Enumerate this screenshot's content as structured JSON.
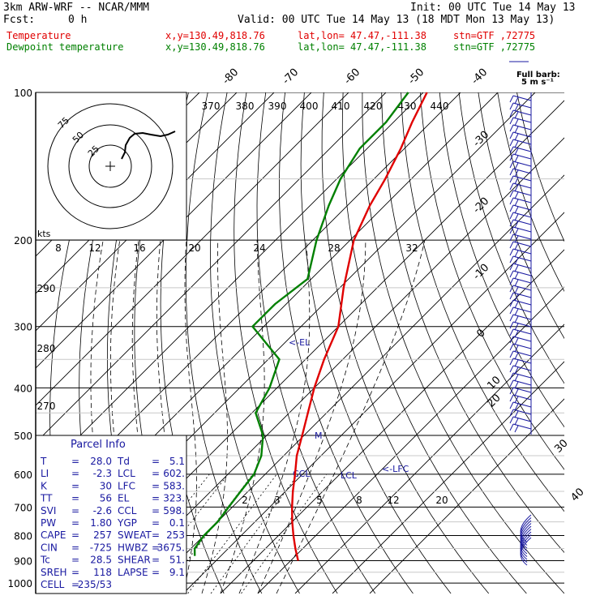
{
  "header": {
    "model": "3km ARW-WRF -- NCAR/MMM",
    "init": "Init: 00 UTC Tue 14 May 13",
    "fcst_label": "Fcst:",
    "fcst_value": "0 h",
    "valid": "Valid: 00 UTC Tue 14 May 13 (18 MDT Mon 13 May 13)",
    "temp_label": "Temperature",
    "dew_label": "Dewpoint temperature",
    "xy": "x,y=130.49,818.76",
    "latlon": "lat,lon= 47.47,-111.38",
    "stn": "stn=GTF ,72775"
  },
  "barb_legend": {
    "title": "Full barb:",
    "value": "5 m s⁻¹"
  },
  "hodograph": {
    "units": "kts",
    "ring_labels": [
      "75",
      "50",
      "25"
    ]
  },
  "parcel_info": {
    "title": "Parcel Info",
    "rows": [
      {
        "k1": "T",
        "v1": "28.0",
        "k2": "Td",
        "v2": "5.1"
      },
      {
        "k1": "LI",
        "v1": "-2.3",
        "k2": "LCL",
        "v2": "602."
      },
      {
        "k1": "K",
        "v1": "30",
        "k2": "LFC",
        "v2": "583."
      },
      {
        "k1": "TT",
        "v1": "56",
        "k2": "EL",
        "v2": "323."
      },
      {
        "k1": "SVI",
        "v1": "-2.6",
        "k2": "CCL",
        "v2": "598."
      },
      {
        "k1": "PW",
        "v1": "1.80",
        "k2": "YGP",
        "v2": "0.1"
      },
      {
        "k1": "CAPE",
        "v1": "257",
        "k2": "SWEAT",
        "v2": "253"
      },
      {
        "k1": "CIN",
        "v1": "-725",
        "k2": "HWBZ",
        "v2": "3675."
      },
      {
        "k1": "Tc",
        "v1": "28.5",
        "k2": "SHEAR",
        "v2": "51."
      },
      {
        "k1": "SREH",
        "v1": "118",
        "k2": "LAPSE",
        "v2": "9.1"
      },
      {
        "k1": "CELL",
        "v1": "235/53",
        "k2": "",
        "v2": ""
      }
    ]
  },
  "level_labels": {
    "el": "<-EL",
    "lfc": "<-LFC",
    "ccl": "CCL",
    "lcl": "LCL",
    "m": "M"
  },
  "colors": {
    "temperature": "#e00000",
    "dewpoint": "#008000",
    "isobar": "#000000",
    "barb": "#1818a0"
  },
  "chart_data": {
    "type": "line",
    "title": "",
    "y_axis": "pressure (hPa), log scale",
    "pressure_ticks": [
      100,
      200,
      300,
      400,
      500,
      600,
      700,
      800,
      900,
      1000
    ],
    "isotherm_labels": [
      "-80",
      "-70",
      "-60",
      "-50",
      "-40",
      "-30",
      "-20",
      "-10",
      "0",
      "10",
      "20",
      "30",
      "40"
    ],
    "theta_labels": [
      "370",
      "380",
      "390",
      "400",
      "410",
      "420",
      "430",
      "440",
      "290",
      "280",
      "270"
    ],
    "mixing_ratio_labels": [
      "8",
      "12",
      "16",
      "20",
      "24",
      "28",
      "32",
      "2",
      "3",
      "5",
      "8",
      "12",
      "20"
    ],
    "series": [
      {
        "name": "Temperature",
        "points": [
          [
            900,
            32
          ],
          [
            850,
            28
          ],
          [
            800,
            24
          ],
          [
            750,
            20
          ],
          [
            700,
            16
          ],
          [
            650,
            12
          ],
          [
            600,
            8
          ],
          [
            550,
            3.5
          ],
          [
            500,
            -0.5
          ],
          [
            450,
            -5
          ],
          [
            400,
            -10
          ],
          [
            350,
            -15
          ],
          [
            300,
            -20
          ],
          [
            250,
            -29
          ],
          [
            200,
            -39
          ],
          [
            170,
            -44
          ],
          [
            150,
            -47
          ],
          [
            130,
            -51
          ],
          [
            115,
            -55
          ],
          [
            100,
            -59
          ]
        ]
      },
      {
        "name": "Dewpoint temperature",
        "points": [
          [
            880,
            3
          ],
          [
            850,
            1
          ],
          [
            800,
            0
          ],
          [
            750,
            0
          ],
          [
            700,
            -1
          ],
          [
            650,
            -2
          ],
          [
            600,
            -3
          ],
          [
            550,
            -6
          ],
          [
            500,
            -11
          ],
          [
            450,
            -19
          ],
          [
            400,
            -22
          ],
          [
            350,
            -27
          ],
          [
            300,
            -43
          ],
          [
            270,
            -43
          ],
          [
            240,
            -41
          ],
          [
            200,
            -49
          ],
          [
            170,
            -55
          ],
          [
            150,
            -59
          ],
          [
            130,
            -62
          ],
          [
            115,
            -62
          ],
          [
            100,
            -64
          ]
        ]
      }
    ]
  }
}
